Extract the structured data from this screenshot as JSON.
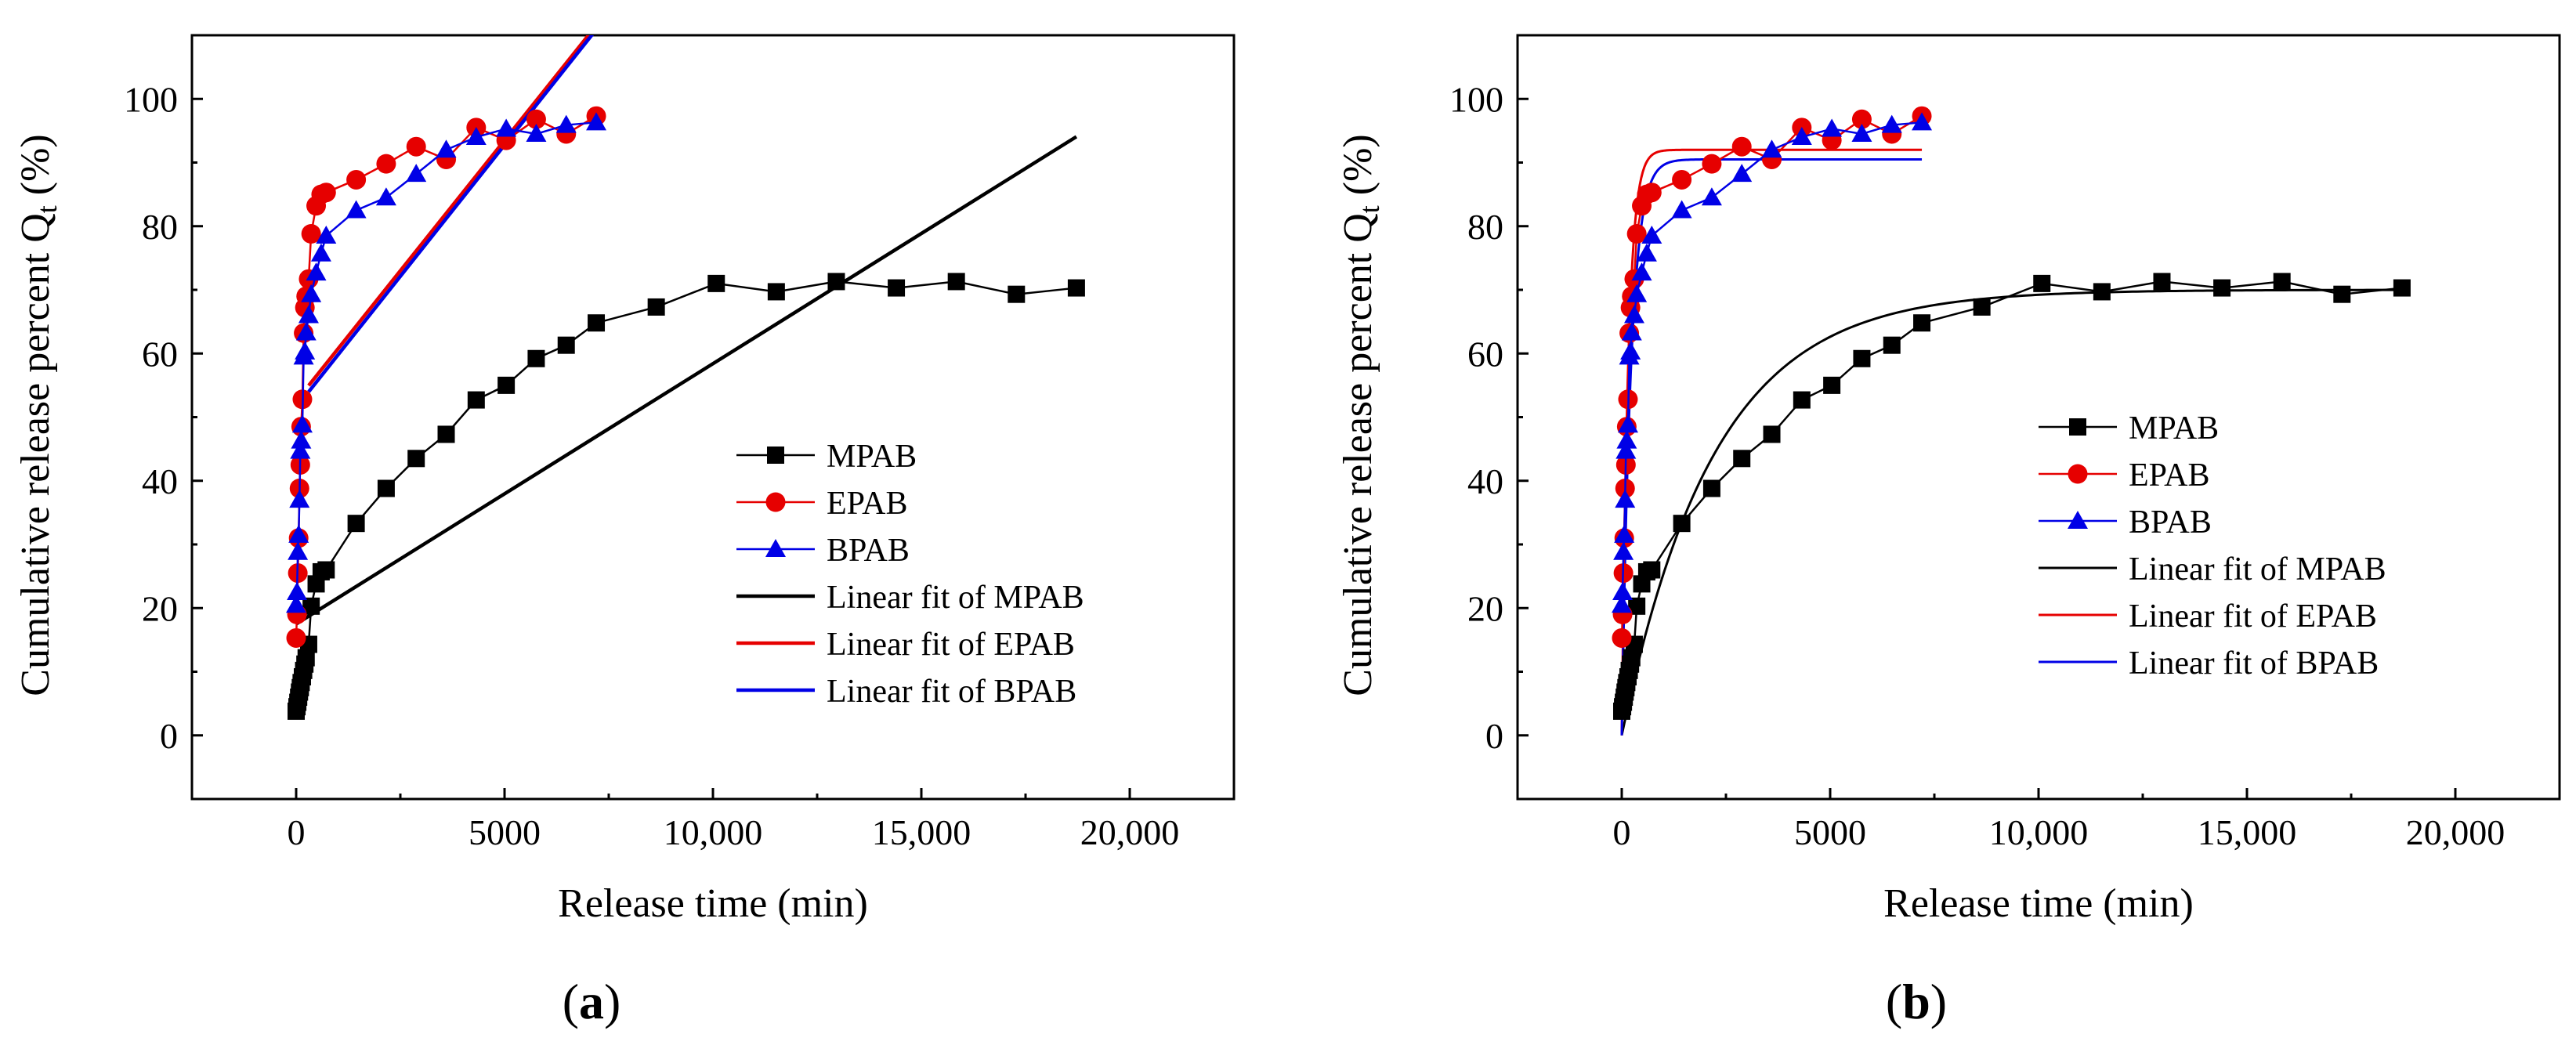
{
  "chart_data": [
    {
      "type": "scatter",
      "panel_label": "a",
      "xlabel": "Release time (min)",
      "ylabel": "Cumulative release percent Q",
      "ylabel_sub": "t",
      "ylabel_unit": " (%)",
      "xlim": [
        -2500,
        22500
      ],
      "ylim": [
        -10,
        110
      ],
      "xticks": [
        0,
        5000,
        10000,
        15000,
        20000
      ],
      "xtick_labels": [
        "0",
        "5000",
        "10,000",
        "15,000",
        "20,000"
      ],
      "yticks": [
        0,
        20,
        40,
        60,
        80,
        100
      ],
      "ytick_labels": [
        "0",
        "20",
        "40",
        "60",
        "80",
        "100"
      ],
      "grid": false,
      "legend_position": "center-right",
      "series": [
        {
          "name": "MPAB",
          "color": "#000000",
          "marker": "square",
          "x": [
            0,
            20,
            40,
            60,
            80,
            100,
            120,
            150,
            180,
            210,
            240,
            300,
            360,
            480,
            600,
            720,
            1440,
            2160,
            2880,
            3600,
            4320,
            5040,
            5760,
            6480,
            7200,
            8640,
            10080,
            11520,
            12960,
            14400,
            15840,
            17280,
            18720
          ],
          "y": [
            3.8,
            4.5,
            5.2,
            6.0,
            6.8,
            7.5,
            8.3,
            9.2,
            10.2,
            11.2,
            12.2,
            14.3,
            20.3,
            23.8,
            25.7,
            26.0,
            33.3,
            38.8,
            43.5,
            47.3,
            52.7,
            55.0,
            59.2,
            61.3,
            64.8,
            67.3,
            71.0,
            69.7,
            71.3,
            70.3,
            71.3,
            69.3,
            70.3
          ]
        },
        {
          "name": "EPAB",
          "color": "#e60000",
          "marker": "circle",
          "x": [
            0,
            20,
            40,
            60,
            80,
            100,
            120,
            150,
            180,
            210,
            240,
            300,
            360,
            480,
            600,
            720,
            1440,
            2160,
            2880,
            3600,
            4320,
            5040,
            5760,
            6480,
            7200
          ],
          "y": [
            15.3,
            19.0,
            25.5,
            31.0,
            38.8,
            42.5,
            48.5,
            52.8,
            63.2,
            67.2,
            69.0,
            71.7,
            78.8,
            83.2,
            85.0,
            85.3,
            87.3,
            89.8,
            92.5,
            90.5,
            95.5,
            93.5,
            96.8,
            94.5,
            97.3
          ]
        },
        {
          "name": "BPAB",
          "color": "#0000e6",
          "marker": "triangle",
          "x": [
            0,
            20,
            40,
            60,
            80,
            100,
            120,
            150,
            180,
            210,
            240,
            300,
            360,
            480,
            600,
            720,
            1440,
            2160,
            2880,
            3600,
            4320,
            5040,
            5760,
            6480,
            7200
          ],
          "y": [
            20.5,
            22.5,
            28.8,
            31.5,
            37.0,
            44.7,
            46.3,
            48.8,
            59.5,
            60.3,
            63.3,
            66.0,
            69.3,
            72.7,
            75.7,
            78.5,
            82.5,
            84.5,
            88.2,
            92.0,
            94.0,
            95.3,
            94.5,
            95.9,
            96.3
          ]
        }
      ],
      "fits": [
        {
          "name": "Linear fit of MPAB",
          "color": "#000000",
          "kind": "linear",
          "x0": 0,
          "x1": 18720,
          "intercept": 17.5,
          "slope": 0.00409
        },
        {
          "name": "Linear fit of EPAB",
          "color": "#e60000",
          "kind": "linear",
          "x0": 300,
          "x1": 7200,
          "intercept": 52.5,
          "slope": 0.0082
        },
        {
          "name": "Linear fit of BPAB",
          "color": "#0000e6",
          "kind": "linear",
          "x0": 300,
          "x1": 7200,
          "intercept": 51.5,
          "slope": 0.00825
        }
      ]
    },
    {
      "type": "scatter",
      "panel_label": "b",
      "xlabel": "Release time (min)",
      "ylabel": "Cumulative release percent Q",
      "ylabel_sub": "t",
      "ylabel_unit": " (%)",
      "xlim": [
        -2500,
        22500
      ],
      "ylim": [
        -10,
        110
      ],
      "xticks": [
        0,
        5000,
        10000,
        15000,
        20000
      ],
      "xtick_labels": [
        "0",
        "5000",
        "10,000",
        "15,000",
        "20,000"
      ],
      "yticks": [
        0,
        20,
        40,
        60,
        80,
        100
      ],
      "ytick_labels": [
        "0",
        "20",
        "40",
        "60",
        "80",
        "100"
      ],
      "grid": false,
      "legend_position": "center-right",
      "series": [
        {
          "name": "MPAB",
          "color": "#000000",
          "marker": "square",
          "x": [
            0,
            20,
            40,
            60,
            80,
            100,
            120,
            150,
            180,
            210,
            240,
            300,
            360,
            480,
            600,
            720,
            1440,
            2160,
            2880,
            3600,
            4320,
            5040,
            5760,
            6480,
            7200,
            8640,
            10080,
            11520,
            12960,
            14400,
            15840,
            17280,
            18720
          ],
          "y": [
            3.8,
            4.5,
            5.2,
            6.0,
            6.8,
            7.5,
            8.3,
            9.2,
            10.2,
            11.2,
            12.2,
            14.3,
            20.3,
            23.8,
            25.7,
            26.0,
            33.3,
            38.8,
            43.5,
            47.3,
            52.7,
            55.0,
            59.2,
            61.3,
            64.8,
            67.3,
            71.0,
            69.7,
            71.3,
            70.3,
            71.3,
            69.3,
            70.3
          ]
        },
        {
          "name": "EPAB",
          "color": "#e60000",
          "marker": "circle",
          "x": [
            0,
            20,
            40,
            60,
            80,
            100,
            120,
            150,
            180,
            210,
            240,
            300,
            360,
            480,
            600,
            720,
            1440,
            2160,
            2880,
            3600,
            4320,
            5040,
            5760,
            6480,
            7200
          ],
          "y": [
            15.3,
            19.0,
            25.5,
            31.0,
            38.8,
            42.5,
            48.5,
            52.8,
            63.2,
            67.2,
            69.0,
            71.7,
            78.8,
            83.2,
            85.0,
            85.3,
            87.3,
            89.8,
            92.5,
            90.5,
            95.5,
            93.5,
            96.8,
            94.5,
            97.3
          ]
        },
        {
          "name": "BPAB",
          "color": "#0000e6",
          "marker": "triangle",
          "x": [
            0,
            20,
            40,
            60,
            80,
            100,
            120,
            150,
            180,
            210,
            240,
            300,
            360,
            480,
            600,
            720,
            1440,
            2160,
            2880,
            3600,
            4320,
            5040,
            5760,
            6480,
            7200
          ],
          "y": [
            20.5,
            22.5,
            28.8,
            31.5,
            37.0,
            44.7,
            46.3,
            48.8,
            59.5,
            60.3,
            63.3,
            66.0,
            69.3,
            72.7,
            75.7,
            78.5,
            82.5,
            84.5,
            88.2,
            92.0,
            94.0,
            95.3,
            94.5,
            95.9,
            96.3
          ]
        }
      ],
      "fits": [
        {
          "name": "Linear fit of MPAB",
          "color": "#000000",
          "kind": "first-order",
          "x0": 0,
          "x1": 18720,
          "qmax": 70.0,
          "k": 0.00045
        },
        {
          "name": "Linear fit of EPAB",
          "color": "#e60000",
          "kind": "first-order",
          "x0": 0,
          "x1": 7200,
          "qmax": 92.0,
          "k": 0.0065
        },
        {
          "name": "Linear fit of BPAB",
          "color": "#0000e6",
          "kind": "first-order",
          "x0": 0,
          "x1": 7200,
          "qmax": 90.5,
          "k": 0.0046
        }
      ]
    }
  ]
}
